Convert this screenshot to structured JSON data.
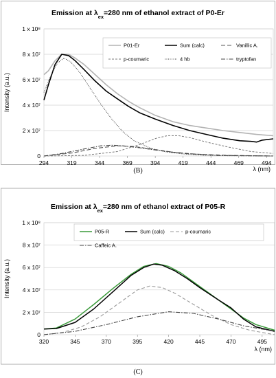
{
  "panels": [
    {
      "id": "B",
      "letter": "(B)",
      "chart_data": {
        "type": "line",
        "title_main": "Emission at λ",
        "title_sub": "ex",
        "title_rest": "=280 nm of ethanol extract of P0-Er",
        "ylabel": "Intensity (a.u.)",
        "xlabel": "λ (nm)",
        "xlim": [
          294,
          500
        ],
        "ylim": [
          0,
          100000000
        ],
        "xticks": [
          294,
          319,
          344,
          369,
          394,
          419,
          444,
          469,
          494
        ],
        "yticks": [
          {
            "value": 0,
            "label": "0"
          },
          {
            "value": 20000000,
            "label": "2 x 10⁷"
          },
          {
            "value": 40000000,
            "label": "4 x 10⁷"
          },
          {
            "value": 60000000,
            "label": "6 x 10⁷"
          },
          {
            "value": 80000000,
            "label": "8 x 10⁷"
          },
          {
            "value": 100000000,
            "label": "1 x 10⁸"
          }
        ],
        "legend": "top-inside",
        "series": [
          {
            "name": "P01-Er",
            "color": "#b3b3b3",
            "width": 1.6,
            "dash": "",
            "x": [
              294,
              298,
              304,
              310,
              316,
              322,
              330,
              340,
              350,
              360,
              370,
              380,
              394,
              410,
              425,
              440,
              455,
              470,
              485,
              500
            ],
            "y": [
              64000000,
              67000000,
              75000000,
              80000000,
              80000000,
              77000000,
              72000000,
              64000000,
              56000000,
              49000000,
              43000000,
              38000000,
              32000000,
              27000000,
              24000000,
              22000000,
              20000000,
              18500000,
              17000000,
              16000000
            ]
          },
          {
            "name": "Sum (calc)",
            "color": "#000000",
            "width": 1.6,
            "dash": "",
            "x": [
              294,
              298,
              304,
              310,
              316,
              322,
              330,
              340,
              350,
              360,
              370,
              380,
              394,
              410,
              425,
              440,
              455,
              470,
              480,
              485,
              490,
              500
            ],
            "y": [
              44000000,
              56000000,
              72000000,
              80000000,
              79000000,
              75000000,
              68000000,
              59000000,
              51000000,
              45000000,
              39000000,
              34000000,
              29000000,
              24000000,
              20000000,
              17000000,
              14000000,
              12000000,
              11500000,
              11000000,
              12500000,
              13500000
            ]
          },
          {
            "name": "Vanillic A.",
            "color": "#555555",
            "width": 1.1,
            "dash": "6,3",
            "x": [
              294,
              320,
              340,
              360,
              375,
              390,
              410,
              430,
              460,
              500
            ],
            "y": [
              0,
              2500000,
              6000000,
              8000000,
              7500000,
              5500000,
              3000000,
              1500000,
              500000,
              0
            ]
          },
          {
            "name": "p-coumaric",
            "color": "#777777",
            "width": 1.0,
            "dash": "3,2",
            "x": [
              294,
              330,
              360,
              380,
              395,
              405,
              415,
              425,
              440,
              460,
              480,
              500
            ],
            "y": [
              0,
              500000,
              3500000,
              9000000,
              14000000,
              16000000,
              16000000,
              14500000,
              11000000,
              7000000,
              3500000,
              2000000
            ]
          },
          {
            "name": "4 hb",
            "color": "#333333",
            "width": 1.0,
            "dash": "1,1.5",
            "x": [
              294,
              300,
              306,
              312,
              318,
              326,
              335,
              345,
              355,
              365,
              375,
              390,
              405,
              420,
              440,
              460,
              500
            ],
            "y": [
              50000000,
              63000000,
              73000000,
              77000000,
              74000000,
              66000000,
              54000000,
              41000000,
              29000000,
              19000000,
              12000000,
              6000000,
              3000000,
              1500000,
              500000,
              200000,
              0
            ]
          },
          {
            "name": "tryptofan",
            "color": "#444444",
            "width": 1.1,
            "dash": "6,2,1.5,2",
            "x": [
              294,
              310,
              330,
              345,
              355,
              365,
              380,
              400,
              420,
              450,
              500
            ],
            "y": [
              0,
              2000000,
              5500000,
              8000000,
              8500000,
              8000000,
              6500000,
              4000000,
              2000000,
              500000,
              0
            ]
          }
        ]
      }
    },
    {
      "id": "C",
      "letter": "(C)",
      "chart_data": {
        "type": "line",
        "title_main": "Emission at λ",
        "title_sub": "ex",
        "title_rest": "=280 nm of ethanol extract of P05-R",
        "ylabel": "Intensity (a.u.)",
        "xlabel": "λ (nm)",
        "xlim": [
          320,
          505
        ],
        "ylim": [
          0,
          100000000
        ],
        "xticks": [
          320,
          345,
          370,
          395,
          420,
          445,
          470,
          495
        ],
        "yticks": [
          {
            "value": 0,
            "label": "0"
          },
          {
            "value": 20000000,
            "label": "2 x 10⁷"
          },
          {
            "value": 40000000,
            "label": "4 x 10⁷"
          },
          {
            "value": 60000000,
            "label": "6 x 10⁷"
          },
          {
            "value": 80000000,
            "label": "8 x 10⁷"
          },
          {
            "value": 100000000,
            "label": "1 x 10⁸"
          }
        ],
        "legend": "top-inside",
        "series": [
          {
            "name": "P05-R",
            "color": "#3a9a3a",
            "width": 1.5,
            "dash": "",
            "x": [
              320,
              330,
              345,
              360,
              375,
              390,
              400,
              410,
              420,
              430,
              445,
              460,
              470,
              480,
              490,
              505
            ],
            "y": [
              5000000,
              6000000,
              14000000,
              27000000,
              41000000,
              54000000,
              61000000,
              63500000,
              61000000,
              55000000,
              43000000,
              31000000,
              23000000,
              15000000,
              9000000,
              4000000
            ]
          },
          {
            "name": "Sum (calc)",
            "color": "#000000",
            "width": 1.5,
            "dash": "",
            "x": [
              320,
              330,
              345,
              360,
              375,
              390,
              400,
              408,
              415,
              425,
              435,
              445,
              460,
              470,
              480,
              490,
              505
            ],
            "y": [
              5000000,
              5500000,
              11000000,
              23000000,
              38000000,
              53000000,
              60000000,
              63000000,
              62000000,
              57000000,
              50000000,
              42000000,
              31000000,
              24000000,
              14000000,
              7000000,
              3000000
            ]
          },
          {
            "name": "p-coumaric",
            "color": "#999999",
            "width": 1.1,
            "dash": "5,3",
            "x": [
              320,
              335,
              350,
              365,
              380,
              395,
              405,
              415,
              425,
              440,
              455,
              470,
              485,
              505
            ],
            "y": [
              0,
              2000000,
              7000000,
              16000000,
              28000000,
              40000000,
              43500000,
              42000000,
              37000000,
              27000000,
              17000000,
              9000000,
              4000000,
              0
            ]
          },
          {
            "name": "Caffeic A.",
            "color": "#444444",
            "width": 1.1,
            "dash": "6,2,1.5,2",
            "x": [
              320,
              345,
              370,
              395,
              420,
              440,
              460,
              480,
              505
            ],
            "y": [
              0,
              3000000,
              9000000,
              16000000,
              20500000,
              19000000,
              14000000,
              8000000,
              3000000
            ]
          }
        ]
      }
    }
  ]
}
